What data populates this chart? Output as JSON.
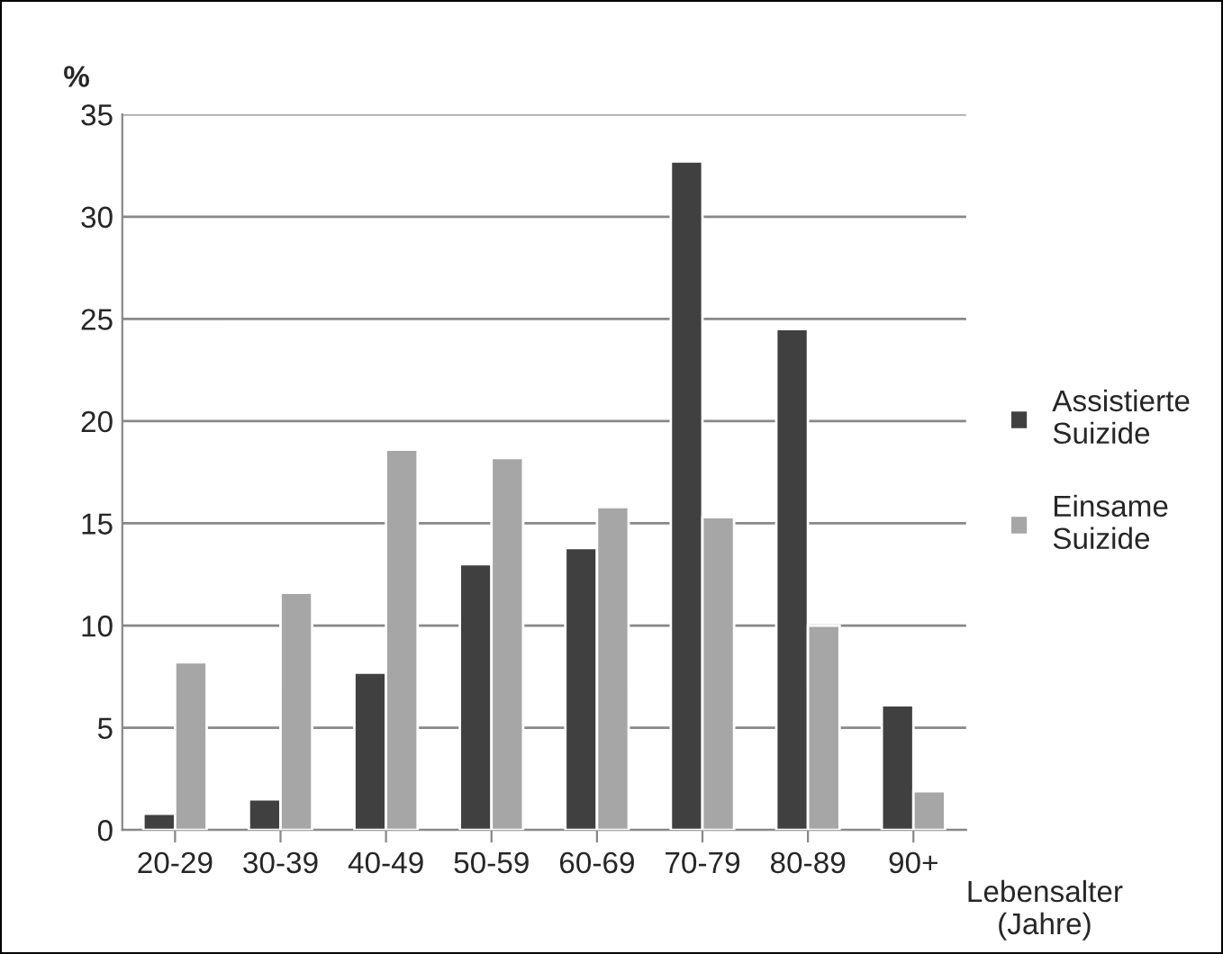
{
  "chart_data": {
    "type": "bar",
    "ylabel": "%",
    "xlabel": "Lebensalter\n(Jahre)",
    "categories": [
      "20-29",
      "30-39",
      "40-49",
      "50-59",
      "60-69",
      "70-79",
      "80-89",
      "90+"
    ],
    "series": [
      {
        "name": "Assistierte\nSuizide",
        "color": "#404040",
        "values": [
          0.8,
          1.5,
          7.7,
          13.0,
          13.8,
          32.7,
          24.5,
          6.1
        ]
      },
      {
        "name": "Einsame\nSuizide",
        "color": "#a6a6a6",
        "values": [
          8.2,
          11.6,
          18.6,
          18.2,
          15.8,
          15.3,
          10.0,
          1.9
        ]
      }
    ],
    "ylim": [
      0,
      35
    ],
    "yticks": [
      0,
      5,
      10,
      15,
      20,
      25,
      30,
      35
    ],
    "grid": "y",
    "legend": "right"
  }
}
